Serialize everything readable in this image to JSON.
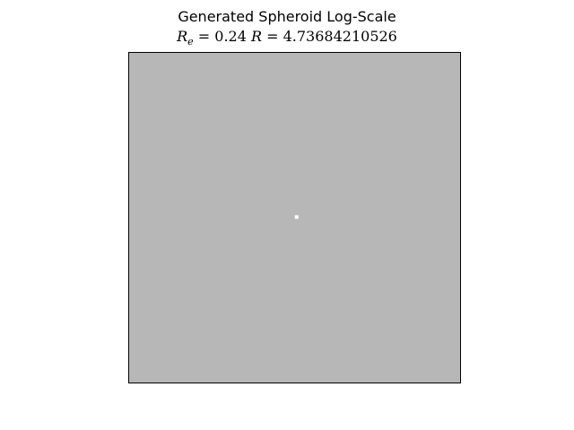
{
  "figure": {
    "title_line1": "Generated Spheroid Log-Scale",
    "title_line2": {
      "re_symbol": "R",
      "re_subscript": "e",
      "equals": " = ",
      "re_value": "0.24",
      "r_symbol": "R",
      "r_value": "4.73684210526"
    }
  },
  "image_panel": {
    "background_color": "#b7b7b7",
    "frame_color": "#000000",
    "grid_size": 96,
    "sphere_radius": 4.73684210526,
    "effective_radius": 0.24,
    "sphere_edge_color": "#000000",
    "sphere_center_color": "#ffffff",
    "colormap": "grayscale-log"
  }
}
